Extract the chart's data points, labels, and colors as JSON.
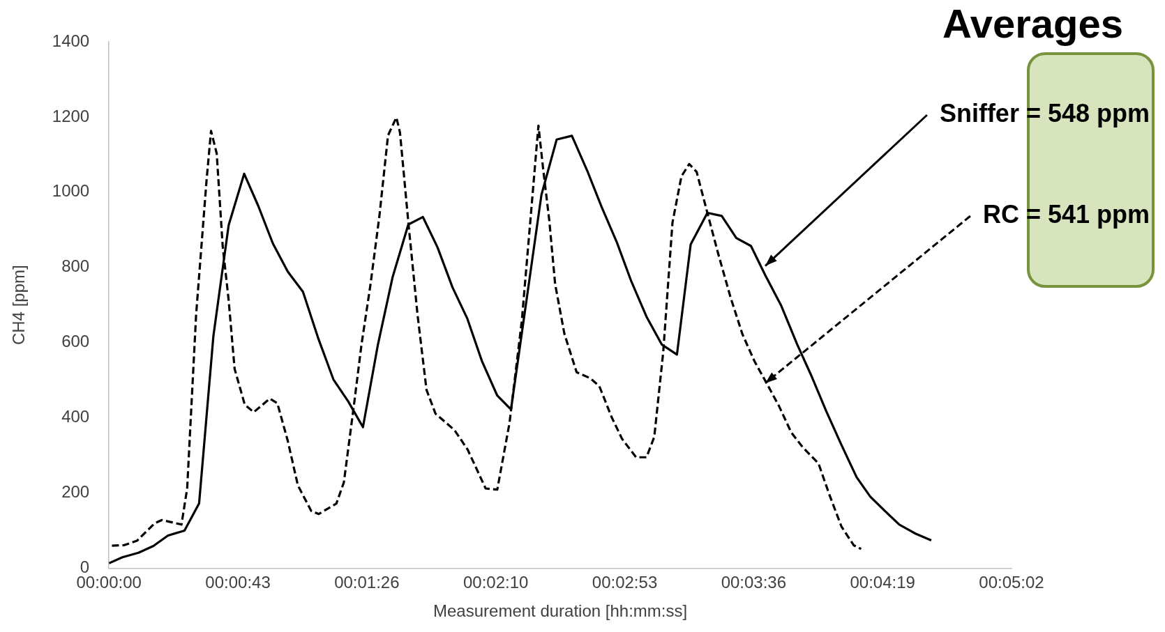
{
  "chart_data": {
    "type": "line",
    "title": "Averages",
    "xlabel": "Measurement duration [hh:mm:ss]",
    "ylabel": "CH4 [ppm]",
    "xlim": [
      0,
      302.4
    ],
    "xticks": [
      {
        "value": 0,
        "label": "00:00:00"
      },
      {
        "value": 43.2,
        "label": "00:00:43"
      },
      {
        "value": 86.4,
        "label": "00:01:26"
      },
      {
        "value": 129.6,
        "label": "00:02:10"
      },
      {
        "value": 172.8,
        "label": "00:02:53"
      },
      {
        "value": 216,
        "label": "00:03:36"
      },
      {
        "value": 259.2,
        "label": "00:04:19"
      },
      {
        "value": 302.4,
        "label": "00:05:02"
      }
    ],
    "ylim": [
      0,
      1400
    ],
    "yticks": [
      0,
      200,
      400,
      600,
      800,
      1000,
      1200,
      1400
    ],
    "grid": false,
    "legend": false,
    "marker": "none",
    "series": [
      {
        "color": "#000000",
        "line_style": "solid",
        "x": [
          0,
          4.5,
          9.9,
          14.9,
          19.8,
          25.3,
          30.2,
          35,
          40.1,
          45.3,
          50,
          54.9,
          59.9,
          65,
          70,
          75.2,
          80.2,
          85.1,
          90.1,
          95,
          100.3,
          105.2,
          110.1,
          115.1,
          120,
          125,
          130.1,
          134.7,
          144.9,
          150,
          155.1,
          160.2,
          165.1,
          170.2,
          175,
          180.1,
          185.2,
          190.3,
          194.9,
          200.5,
          205.3,
          210.2,
          215.1,
          219.9,
          225.3,
          230.6,
          235.5,
          240.3,
          245.4,
          250.5,
          255.1,
          260,
          264.8,
          270.2,
          275.5
        ],
        "values": [
          13,
          29,
          41,
          59,
          87,
          100,
          172,
          618,
          912,
          1049,
          964,
          864,
          789,
          735,
          614,
          502,
          443,
          375,
          594,
          773,
          914,
          934,
          853,
          747,
          665,
          550,
          459,
          422,
          993,
          1140,
          1150,
          1058,
          960,
          866,
          763,
          669,
          595,
          568,
          861,
          945,
          937,
          878,
          857,
          779,
          697,
          595,
          509,
          418,
          328,
          242,
          190,
          152,
          116,
          92,
          74
        ]
      },
      {
        "color": "#000000",
        "line_style": "dashed",
        "x": [
          1,
          5,
          9.4,
          15.4,
          17.8,
          24.3,
          26.2,
          29.2,
          32.7,
          34.2,
          36.1,
          38.1,
          40.1,
          42.1,
          45.5,
          48.5,
          53.9,
          56.4,
          59.9,
          63.3,
          67.8,
          70.3,
          76.2,
          78.7,
          82.1,
          84.6,
          87.6,
          90.6,
          93.5,
          96.3,
          97.5,
          100.4,
          103.4,
          106.4,
          109.4,
          115.8,
          120.2,
          126.2,
          130.1,
          134.2,
          138.3,
          141.4,
          143.4,
          143.9,
          145.4,
          147.5,
          149.5,
          152.6,
          156.7,
          161.3,
          164.3,
          168.4,
          171.9,
          176.6,
          180.1,
          182.7,
          185.7,
          188.8,
          191.8,
          194.4,
          196.9,
          200,
          204.1,
          208.2,
          212.2,
          216.3,
          220.9,
          224.5,
          228.6,
          232.6,
          237.7,
          241.3,
          245.4,
          249.5,
          252
        ],
        "values": [
          60,
          61,
          73,
          120,
          128,
          116,
          212,
          674,
          1032,
          1163,
          1103,
          857,
          713,
          530,
          435,
          415,
          451,
          439,
          339,
          220,
          152,
          144,
          172,
          228,
          435,
          594,
          753,
          936,
          1151,
          1199,
          1159,
          912,
          673,
          474,
          411,
          367,
          315,
          212,
          209,
          386,
          656,
          944,
          1132,
          1177,
          1067,
          927,
          755,
          623,
          521,
          505,
          484,
          402,
          344,
          295,
          295,
          349,
          574,
          919,
          1042,
          1075,
          1054,
          960,
          837,
          722,
          623,
          550,
          484,
          431,
          361,
          320,
          279,
          197,
          111,
          61,
          51
        ]
      }
    ],
    "annotations": [
      {
        "text": "Sniffer = 548 ppm",
        "x": 219.9,
        "y": 804
      },
      {
        "text": "RC = 541 ppm",
        "x": 219.9,
        "y": 492
      }
    ]
  }
}
